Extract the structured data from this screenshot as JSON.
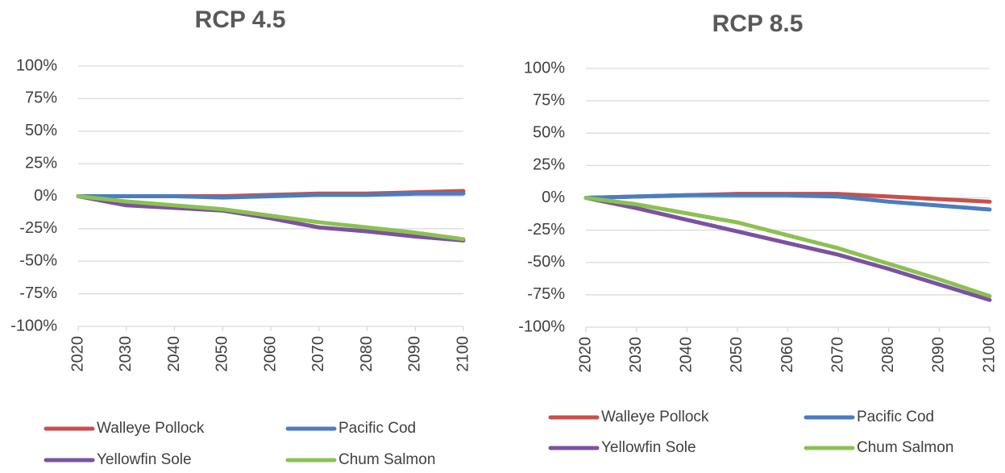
{
  "chart_data": [
    {
      "type": "line",
      "title": "RCP 4.5",
      "x": [
        2020,
        2030,
        2040,
        2050,
        2060,
        2070,
        2080,
        2090,
        2100
      ],
      "xlim": [
        2020,
        2100
      ],
      "xticks": [
        2020,
        2030,
        2040,
        2050,
        2060,
        2070,
        2080,
        2090,
        2100
      ],
      "ylim": [
        -100,
        100
      ],
      "yticks": [
        {
          "value": 100,
          "label": "100%"
        },
        {
          "value": 75,
          "label": "75%"
        },
        {
          "value": 50,
          "label": "50%"
        },
        {
          "value": 25,
          "label": "25%"
        },
        {
          "value": 0,
          "label": "0%"
        },
        {
          "value": -25,
          "label": "-25%"
        },
        {
          "value": -50,
          "label": "-50%"
        },
        {
          "value": -75,
          "label": "-75%"
        },
        {
          "value": -100,
          "label": "-100%"
        }
      ],
      "grid": true,
      "series": [
        {
          "name": "Walleye Pollock",
          "color": "#c9504a",
          "values": [
            0,
            0,
            0,
            0,
            1,
            2,
            2,
            3,
            4
          ]
        },
        {
          "name": "Pacific Cod",
          "color": "#4a7dc0",
          "values": [
            0,
            0,
            0,
            -1,
            0,
            1,
            1,
            2,
            2
          ]
        },
        {
          "name": "Yellowfin Sole",
          "color": "#7b52a1",
          "values": [
            0,
            -7,
            -9,
            -11,
            -17,
            -24,
            -27,
            -31,
            -34
          ]
        },
        {
          "name": "Chum Salmon",
          "color": "#8cc152",
          "values": [
            0,
            -4,
            -7,
            -10,
            -15,
            -20,
            -24,
            -28,
            -33
          ]
        }
      ]
    },
    {
      "type": "line",
      "title": "RCP 8.5",
      "x": [
        2020,
        2030,
        2040,
        2050,
        2060,
        2070,
        2080,
        2090,
        2100
      ],
      "xlim": [
        2020,
        2100
      ],
      "xticks": [
        2020,
        2030,
        2040,
        2050,
        2060,
        2070,
        2080,
        2090,
        2100
      ],
      "ylim": [
        -100,
        100
      ],
      "yticks": [
        {
          "value": 100,
          "label": "100%"
        },
        {
          "value": 75,
          "label": "75%"
        },
        {
          "value": 50,
          "label": "50%"
        },
        {
          "value": 25,
          "label": "25%"
        },
        {
          "value": 0,
          "label": "0%"
        },
        {
          "value": -25,
          "label": "-25%"
        },
        {
          "value": -50,
          "label": "-50%"
        },
        {
          "value": -75,
          "label": "-75%"
        },
        {
          "value": -100,
          "label": "-100%"
        }
      ],
      "grid": true,
      "series": [
        {
          "name": "Walleye Pollock",
          "color": "#c9504a",
          "values": [
            0,
            1,
            2,
            3,
            3,
            3,
            1,
            -1,
            -3
          ]
        },
        {
          "name": "Pacific Cod",
          "color": "#4a7dc0",
          "values": [
            0,
            1,
            2,
            2,
            2,
            1,
            -3,
            -6,
            -9
          ]
        },
        {
          "name": "Yellowfin Sole",
          "color": "#7b52a1",
          "values": [
            0,
            -8,
            -17,
            -26,
            -35,
            -44,
            -55,
            -67,
            -79
          ]
        },
        {
          "name": "Chum Salmon",
          "color": "#8cc152",
          "values": [
            0,
            -5,
            -12,
            -19,
            -29,
            -39,
            -51,
            -63,
            -76
          ]
        }
      ]
    }
  ]
}
